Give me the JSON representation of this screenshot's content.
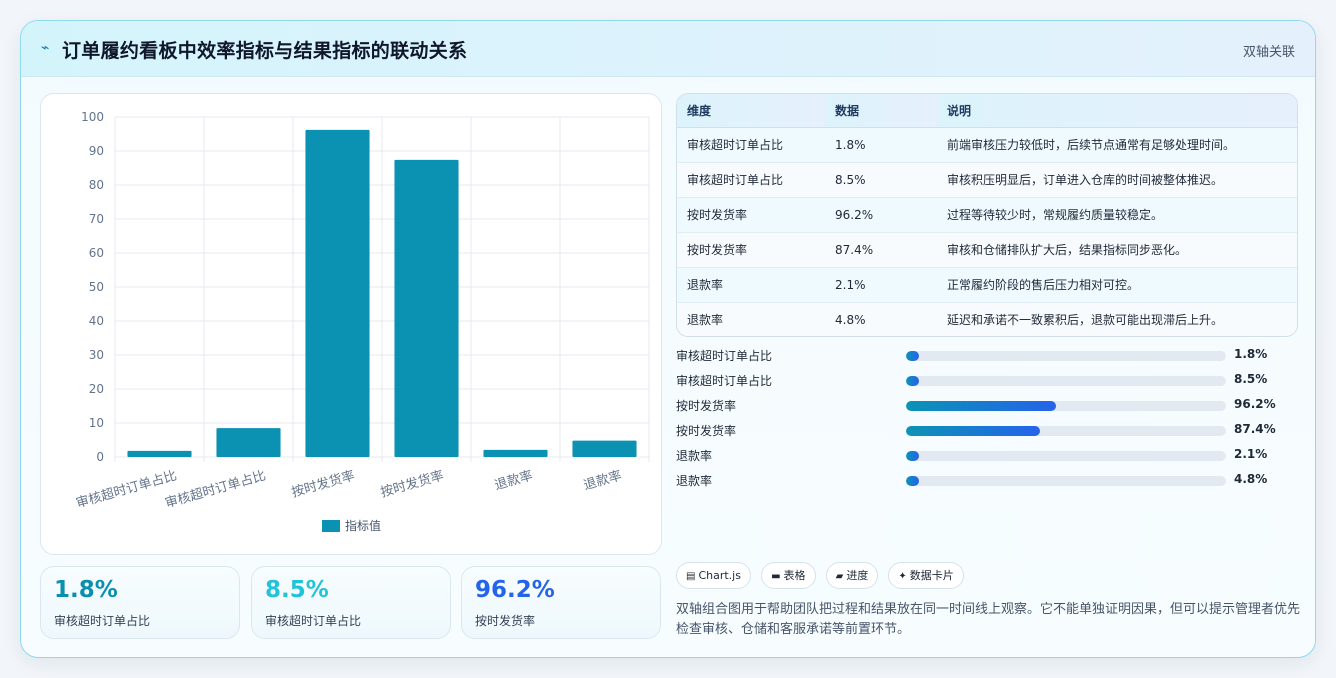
{
  "header": {
    "logo_glyph": "⌁",
    "title": "订单履约看板中效率指标与结果指标的联动关系",
    "tag": "双轴关联"
  },
  "chart_data": {
    "type": "bar",
    "categories": [
      "审核超时订单占比",
      "审核超时订单占比",
      "按时发货率",
      "按时发货率",
      "退款率",
      "退款率"
    ],
    "series": [
      {
        "name": "指标值",
        "values": [
          1.8,
          8.5,
          96.2,
          87.4,
          2.1,
          4.8
        ],
        "color": "#0b91b1"
      }
    ],
    "yticks": [
      "0",
      "10",
      "20",
      "30",
      "40",
      "50",
      "60",
      "70",
      "80",
      "90",
      "100"
    ],
    "ylim": [
      0,
      100
    ],
    "legend": "bottom",
    "grid": true
  },
  "kpis": [
    {
      "value": "1.8%",
      "label": "审核超时订单占比",
      "color": "#0b8fb0"
    },
    {
      "value": "8.5%",
      "label": "审核超时订单占比",
      "color": "#22c3d9"
    },
    {
      "value": "96.2%",
      "label": "按时发货率",
      "color": "#2563eb"
    }
  ],
  "table": {
    "headers": [
      "维度",
      "数据",
      "说明"
    ],
    "rows": [
      [
        "审核超时订单占比",
        "1.8%",
        "前端审核压力较低时，后续节点通常有足够处理时间。"
      ],
      [
        "审核超时订单占比",
        "8.5%",
        "审核积压明显后，订单进入仓库的时间被整体推迟。"
      ],
      [
        "按时发货率",
        "96.2%",
        "过程等待较少时，常规履约质量较稳定。"
      ],
      [
        "按时发货率",
        "87.4%",
        "审核和仓储排队扩大后，结果指标同步恶化。"
      ],
      [
        "退款率",
        "2.1%",
        "正常履约阶段的售后压力相对可控。"
      ],
      [
        "退款率",
        "4.8%",
        "延迟和承诺不一致累积后，退款可能出现滞后上升。"
      ]
    ]
  },
  "progress": [
    {
      "label": "审核超时订单占比",
      "value": "1.8%",
      "fraction": 0.04
    },
    {
      "label": "审核超时订单占比",
      "value": "8.5%",
      "fraction": 0.04
    },
    {
      "label": "按时发货率",
      "value": "96.2%",
      "fraction": 0.47
    },
    {
      "label": "按时发货率",
      "value": "87.4%",
      "fraction": 0.42
    },
    {
      "label": "退款率",
      "value": "2.1%",
      "fraction": 0.04
    },
    {
      "label": "退款率",
      "value": "4.8%",
      "fraction": 0.04
    }
  ],
  "chips": [
    {
      "icon": "▤",
      "label": "Chart.js"
    },
    {
      "icon": "▬",
      "label": "表格"
    },
    {
      "icon": "▰",
      "label": "进度"
    },
    {
      "icon": "✦",
      "label": "数据卡片"
    }
  ],
  "note": "双轴组合图用于帮助团队把过程和结果放在同一时间线上观察。它不能单独证明因果，但可以提示管理者优先检查审核、仓储和客服承诺等前置环节。"
}
